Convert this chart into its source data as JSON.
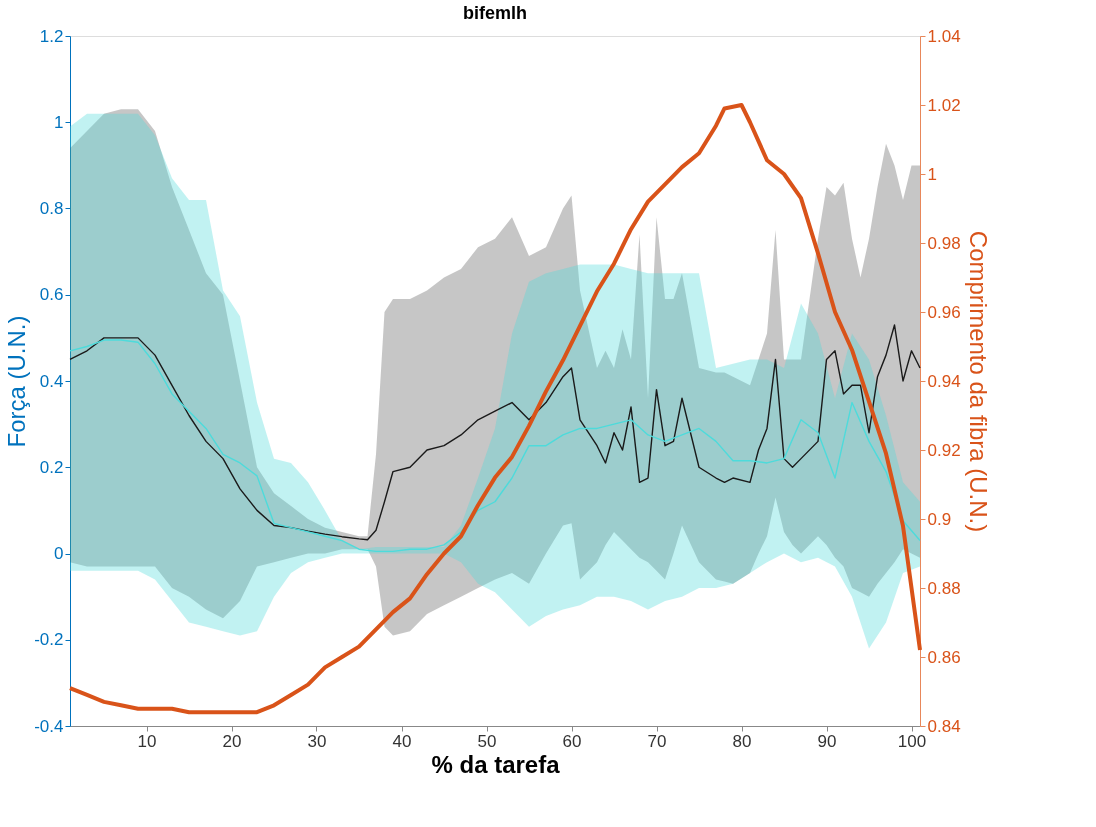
{
  "chart_data": {
    "type": "line",
    "title": "bifemlh",
    "xlabel": "% da tarefa",
    "ylabel": "Força (U.N.)",
    "y2label": "Comprimento da fibra (U.N.)",
    "xlim": [
      1,
      101
    ],
    "xticks": [
      10,
      20,
      30,
      40,
      50,
      60,
      70,
      80,
      90,
      100
    ],
    "ylim": [
      -0.4,
      1.2
    ],
    "yticks": [
      -0.4,
      -0.2,
      0,
      0.2,
      0.4,
      0.6,
      0.8,
      1,
      1.2
    ],
    "y2lim": [
      0.84,
      1.04
    ],
    "y2ticks": [
      0.84,
      0.86,
      0.88,
      0.9,
      0.92,
      0.94,
      0.96,
      0.98,
      1,
      1.02,
      1.04
    ],
    "grid": false,
    "marker": "none",
    "line_style": "solid",
    "series": [
      {
        "color": "#1a1a1a",
        "x": [
          1,
          3,
          5,
          7,
          9,
          11,
          13,
          15,
          17,
          19,
          21,
          23,
          25,
          27,
          29,
          31,
          33,
          35,
          36,
          37,
          38,
          39,
          41,
          43,
          45,
          47,
          49,
          51,
          53,
          55,
          57,
          59,
          60,
          61,
          63,
          64,
          65,
          66,
          67,
          68,
          69,
          70,
          71,
          72,
          73,
          75,
          77,
          78,
          79,
          81,
          82,
          83,
          84,
          85,
          86,
          87,
          89,
          90,
          91,
          92,
          93,
          94,
          95,
          96,
          97,
          98,
          99,
          100,
          101
        ],
        "values": [
          0.45,
          0.47,
          0.5,
          0.5,
          0.5,
          0.46,
          0.39,
          0.32,
          0.26,
          0.22,
          0.15,
          0.1,
          0.065,
          0.06,
          0.052,
          0.045,
          0.039,
          0.034,
          0.032,
          0.054,
          0.12,
          0.19,
          0.2,
          0.24,
          0.25,
          0.275,
          0.31,
          0.33,
          0.35,
          0.31,
          0.35,
          0.41,
          0.43,
          0.31,
          0.25,
          0.21,
          0.28,
          0.24,
          0.34,
          0.165,
          0.175,
          0.38,
          0.25,
          0.26,
          0.36,
          0.2,
          0.175,
          0.165,
          0.175,
          0.165,
          0.24,
          0.29,
          0.45,
          0.22,
          0.2,
          0.22,
          0.26,
          0.45,
          0.47,
          0.37,
          0.39,
          0.39,
          0.28,
          0.41,
          0.46,
          0.53,
          0.4,
          0.47,
          0.43
        ],
        "upper": [
          0.94,
          0.98,
          1.02,
          1.03,
          1.03,
          0.98,
          0.85,
          0.75,
          0.65,
          0.6,
          0.4,
          0.2,
          0.14,
          0.11,
          0.08,
          0.06,
          0.05,
          0.04,
          0.04,
          0.23,
          0.56,
          0.59,
          0.59,
          0.61,
          0.64,
          0.66,
          0.71,
          0.73,
          0.78,
          0.69,
          0.71,
          0.8,
          0.83,
          0.61,
          0.43,
          0.47,
          0.43,
          0.52,
          0.45,
          0.74,
          0.36,
          0.78,
          0.59,
          0.59,
          0.65,
          0.43,
          0.42,
          0.42,
          0.41,
          0.39,
          0.45,
          0.51,
          0.75,
          0.45,
          0.45,
          0.45,
          0.73,
          0.85,
          0.83,
          0.86,
          0.73,
          0.64,
          0.73,
          0.85,
          0.95,
          0.9,
          0.82,
          0.9,
          0.9
        ],
        "lower": [
          -0.02,
          -0.03,
          -0.03,
          -0.03,
          -0.03,
          -0.03,
          -0.08,
          -0.1,
          -0.13,
          -0.15,
          -0.11,
          -0.03,
          -0.02,
          -0.01,
          0,
          0,
          0.01,
          0.01,
          0.01,
          -0.03,
          -0.17,
          -0.19,
          -0.18,
          -0.14,
          -0.12,
          -0.1,
          -0.08,
          -0.06,
          -0.045,
          -0.07,
          0,
          0.065,
          0.07,
          -0.06,
          -0.02,
          0.02,
          0.05,
          0.03,
          0.01,
          -0.01,
          -0.02,
          -0.04,
          -0.06,
          0,
          0.065,
          -0.02,
          -0.06,
          -0.065,
          -0.07,
          -0.045,
          0,
          0.04,
          0.13,
          0.05,
          0.02,
          0,
          0.04,
          0.02,
          -0.01,
          -0.03,
          -0.08,
          -0.09,
          -0.1,
          -0.07,
          -0.045,
          -0.02,
          0.01,
          0,
          -0.01
        ]
      },
      {
        "color": "#4ddbdb",
        "x": [
          1,
          3,
          5,
          7,
          9,
          11,
          13,
          15,
          17,
          19,
          21,
          23,
          25,
          27,
          29,
          31,
          33,
          35,
          37,
          39,
          41,
          43,
          45,
          47,
          49,
          51,
          53,
          55,
          57,
          59,
          61,
          63,
          65,
          67,
          69,
          71,
          73,
          75,
          77,
          79,
          81,
          83,
          85,
          87,
          89,
          91,
          93,
          95,
          97,
          99,
          101
        ],
        "values": [
          0.47,
          0.48,
          0.495,
          0.495,
          0.49,
          0.44,
          0.37,
          0.33,
          0.29,
          0.23,
          0.21,
          0.18,
          0.07,
          0.06,
          0.05,
          0.04,
          0.03,
          0.01,
          0.005,
          0.005,
          0.01,
          0.01,
          0.02,
          0.05,
          0.1,
          0.12,
          0.175,
          0.25,
          0.25,
          0.275,
          0.29,
          0.29,
          0.3,
          0.31,
          0.275,
          0.26,
          0.275,
          0.29,
          0.26,
          0.215,
          0.215,
          0.21,
          0.22,
          0.31,
          0.28,
          0.175,
          0.35,
          0.26,
          0.19,
          0.076,
          0.03
        ],
        "upper": [
          0.99,
          1.02,
          1.02,
          1.02,
          1.02,
          0.97,
          0.87,
          0.82,
          0.82,
          0.61,
          0.55,
          0.35,
          0.22,
          0.21,
          0.165,
          0.1,
          0.03,
          0.01,
          0.015,
          0.015,
          0.015,
          0.015,
          0.015,
          0.065,
          0.175,
          0.29,
          0.51,
          0.63,
          0.65,
          0.66,
          0.67,
          0.67,
          0.67,
          0.66,
          0.65,
          0.65,
          0.65,
          0.65,
          0.43,
          0.44,
          0.45,
          0.45,
          0.43,
          0.58,
          0.51,
          0.36,
          0.51,
          0.45,
          0.32,
          0.165,
          0.12
        ],
        "lower": [
          -0.04,
          -0.04,
          -0.04,
          -0.04,
          -0.04,
          -0.06,
          -0.11,
          -0.16,
          -0.17,
          -0.18,
          -0.19,
          -0.18,
          -0.1,
          -0.045,
          -0.02,
          -0.01,
          0,
          0,
          0,
          0,
          0,
          0,
          0,
          -0.02,
          -0.07,
          -0.09,
          -0.13,
          -0.17,
          -0.145,
          -0.13,
          -0.12,
          -0.1,
          -0.1,
          -0.11,
          -0.13,
          -0.11,
          -0.1,
          -0.08,
          -0.08,
          -0.07,
          -0.045,
          -0.02,
          0,
          -0.02,
          -0.01,
          -0.03,
          -0.1,
          -0.22,
          -0.16,
          -0.045,
          -0.03
        ]
      },
      {
        "color": "#d95319",
        "axis": "y2",
        "x": [
          1,
          3,
          5,
          7,
          9,
          11,
          13,
          15,
          17,
          19,
          21,
          23,
          25,
          27,
          29,
          31,
          33,
          35,
          37,
          39,
          41,
          43,
          45,
          47,
          49,
          51,
          53,
          55,
          57,
          59,
          61,
          63,
          65,
          67,
          69,
          71,
          73,
          75,
          77,
          78,
          80,
          81,
          83,
          85,
          87,
          89,
          91,
          93,
          95,
          97,
          99,
          101
        ],
        "values": [
          0.851,
          0.849,
          0.847,
          0.846,
          0.845,
          0.845,
          0.845,
          0.844,
          0.844,
          0.844,
          0.844,
          0.844,
          0.846,
          0.849,
          0.852,
          0.857,
          0.86,
          0.863,
          0.868,
          0.873,
          0.877,
          0.884,
          0.89,
          0.895,
          0.904,
          0.912,
          0.918,
          0.927,
          0.937,
          0.946,
          0.956,
          0.966,
          0.974,
          0.984,
          0.992,
          0.997,
          1.002,
          1.006,
          1.014,
          1.019,
          1.02,
          1.015,
          1.004,
          1.0,
          0.993,
          0.977,
          0.96,
          0.949,
          0.934,
          0.919,
          0.898,
          0.862
        ]
      }
    ]
  }
}
